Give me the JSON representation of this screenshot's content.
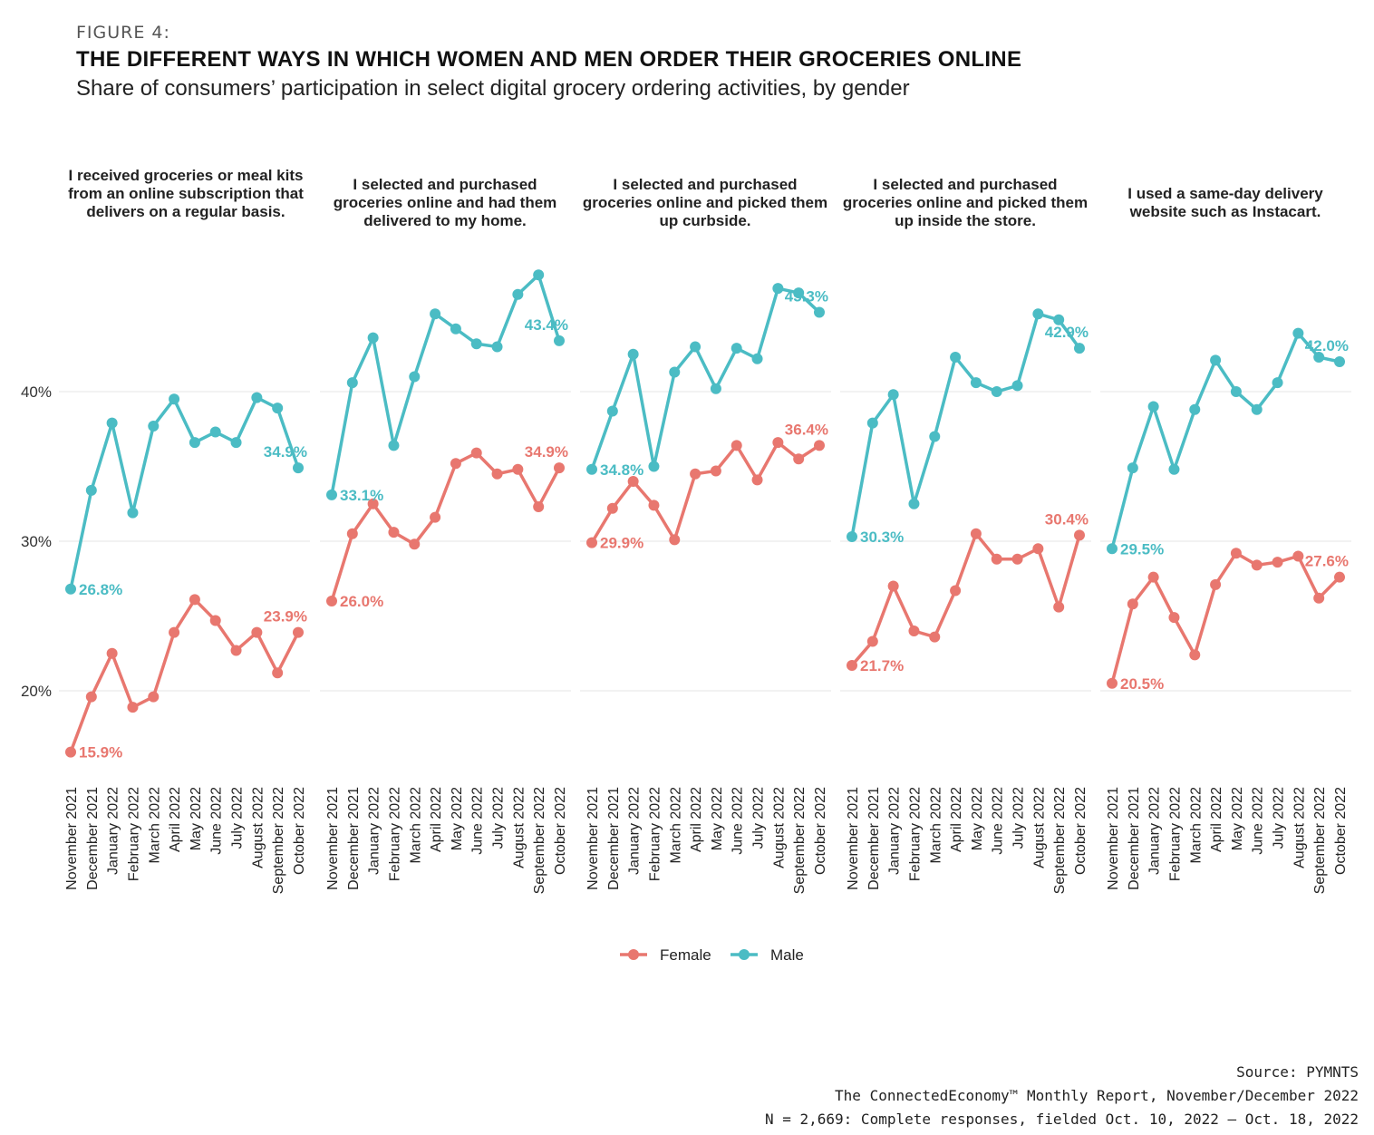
{
  "header": {
    "figure": "FIGURE 4:",
    "title": "THE DIFFERENT WAYS IN WHICH WOMEN AND MEN ORDER THEIR GROCERIES ONLINE",
    "subtitle": "Share of consumers’ participation in select digital grocery ordering activities, by gender"
  },
  "source": {
    "line1": "Source: PYMNTS",
    "line2": "The ConnectedEconomy™ Monthly Report, November/December 2022",
    "line3": "N = 2,669: Complete responses, fielded Oct. 10, 2022 – Oct. 18, 2022"
  },
  "colors": {
    "Female": "#e8776f",
    "Male": "#4bbcc4",
    "grid": "#e4e4e4"
  },
  "chart_data": {
    "type": "line",
    "x": [
      "November 2021",
      "December 2021",
      "January 2022",
      "February 2022",
      "March 2022",
      "April 2022",
      "May 2022",
      "June 2022",
      "July 2022",
      "August 2022",
      "September 2022",
      "October 2022"
    ],
    "yticks": [
      "20%",
      "30%",
      "40%"
    ],
    "ytick_values": [
      20,
      30,
      40
    ],
    "ylim": [
      15,
      49
    ],
    "grid": true,
    "legend": {
      "placement": "bottom",
      "entries": [
        "Female",
        "Male"
      ]
    },
    "panels": [
      {
        "title": "I received groceries or meal kits from an online subscription that delivers on a regular basis.",
        "series": [
          {
            "name": "Female",
            "values": [
              15.9,
              19.6,
              22.5,
              18.9,
              19.6,
              23.9,
              26.1,
              24.7,
              22.7,
              23.9,
              21.2,
              23.9
            ]
          },
          {
            "name": "Male",
            "values": [
              26.8,
              33.4,
              37.9,
              31.9,
              37.7,
              39.5,
              36.6,
              37.3,
              36.6,
              39.6,
              38.9,
              34.9
            ]
          }
        ],
        "labels": {
          "Female_first": "15.9%",
          "Female_last": "23.9%",
          "Male_first": "26.8%",
          "Male_last": "34.9%"
        }
      },
      {
        "title": "I selected and purchased groceries online and had them delivered to my home.",
        "series": [
          {
            "name": "Female",
            "values": [
              26.0,
              30.5,
              32.5,
              30.6,
              29.8,
              31.6,
              35.2,
              35.9,
              34.5,
              34.8,
              32.3,
              34.9
            ]
          },
          {
            "name": "Male",
            "values": [
              33.1,
              40.6,
              43.6,
              36.4,
              41.0,
              45.2,
              44.2,
              43.2,
              43.0,
              46.5,
              47.8,
              43.4
            ]
          }
        ],
        "labels": {
          "Female_first": "26.0%",
          "Female_last": "34.9%",
          "Male_first": "33.1%",
          "Male_last": "43.4%"
        }
      },
      {
        "title": "I selected and purchased groceries online and picked them up curbside.",
        "series": [
          {
            "name": "Female",
            "values": [
              29.9,
              32.2,
              34.0,
              32.4,
              30.1,
              34.5,
              34.7,
              36.4,
              34.1,
              36.6,
              35.5,
              36.4
            ]
          },
          {
            "name": "Male",
            "values": [
              34.8,
              38.7,
              42.5,
              35.0,
              41.3,
              43.0,
              40.2,
              42.9,
              42.2,
              46.9,
              46.6,
              45.3
            ]
          }
        ],
        "labels": {
          "Female_first": "29.9%",
          "Female_last": "36.4%",
          "Male_first": "34.8%",
          "Male_last": "45.3%"
        }
      },
      {
        "title": "I selected and purchased groceries online and picked them up inside the store.",
        "series": [
          {
            "name": "Female",
            "values": [
              21.7,
              23.3,
              27.0,
              24.0,
              23.6,
              26.7,
              30.5,
              28.8,
              28.8,
              29.5,
              25.6,
              30.4
            ]
          },
          {
            "name": "Male",
            "values": [
              30.3,
              37.9,
              39.8,
              32.5,
              37.0,
              42.3,
              40.6,
              40.0,
              40.4,
              45.2,
              44.8,
              42.9
            ]
          }
        ],
        "labels": {
          "Female_first": "21.7%",
          "Female_last": "30.4%",
          "Male_first": "30.3%",
          "Male_last": "42.9%"
        }
      },
      {
        "title": "I used a same-day delivery website such as Instacart.",
        "series": [
          {
            "name": "Female",
            "values": [
              20.5,
              25.8,
              27.6,
              24.9,
              22.4,
              27.1,
              29.2,
              28.4,
              28.6,
              29.0,
              26.2,
              27.6
            ]
          },
          {
            "name": "Male",
            "values": [
              29.5,
              34.9,
              39.0,
              34.8,
              38.8,
              42.1,
              40.0,
              38.8,
              40.6,
              43.9,
              42.3,
              42.0
            ]
          }
        ],
        "labels": {
          "Female_first": "20.5%",
          "Female_last": "27.6%",
          "Male_first": "29.5%",
          "Male_last": "42.0%"
        }
      }
    ]
  }
}
